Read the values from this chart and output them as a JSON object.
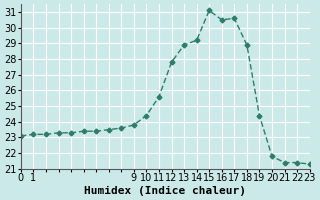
{
  "x": [
    0,
    1,
    2,
    3,
    4,
    5,
    6,
    7,
    8,
    9,
    10,
    11,
    12,
    13,
    14,
    15,
    16,
    17,
    18,
    19,
    20,
    21,
    22,
    23
  ],
  "y": [
    23.1,
    23.2,
    23.2,
    23.3,
    23.3,
    23.4,
    23.4,
    23.5,
    23.6,
    23.8,
    24.4,
    25.6,
    27.8,
    28.9,
    29.2,
    31.1,
    30.5,
    30.6,
    28.9,
    24.4,
    21.8,
    21.4,
    21.4,
    21.3
  ],
  "xlabel": "Humidex (Indice chaleur)",
  "xlim": [
    0,
    23
  ],
  "ylim": [
    21,
    31.5
  ],
  "yticks": [
    21,
    22,
    23,
    24,
    25,
    26,
    27,
    28,
    29,
    30,
    31
  ],
  "xtick_labels": [
    "0",
    "1",
    "",
    "",
    "",
    "",
    "",
    "",
    "",
    "9",
    "10",
    "11",
    "12",
    "13",
    "14",
    "15",
    "16",
    "17",
    "18",
    "19",
    "20",
    "21",
    "22",
    "23"
  ],
  "line_color": "#2d7d6b",
  "marker_color": "#2d7d6b",
  "bg_color": "#cce9e9",
  "grid_color": "#ffffff",
  "xlabel_fontsize": 8,
  "tick_fontsize": 7
}
